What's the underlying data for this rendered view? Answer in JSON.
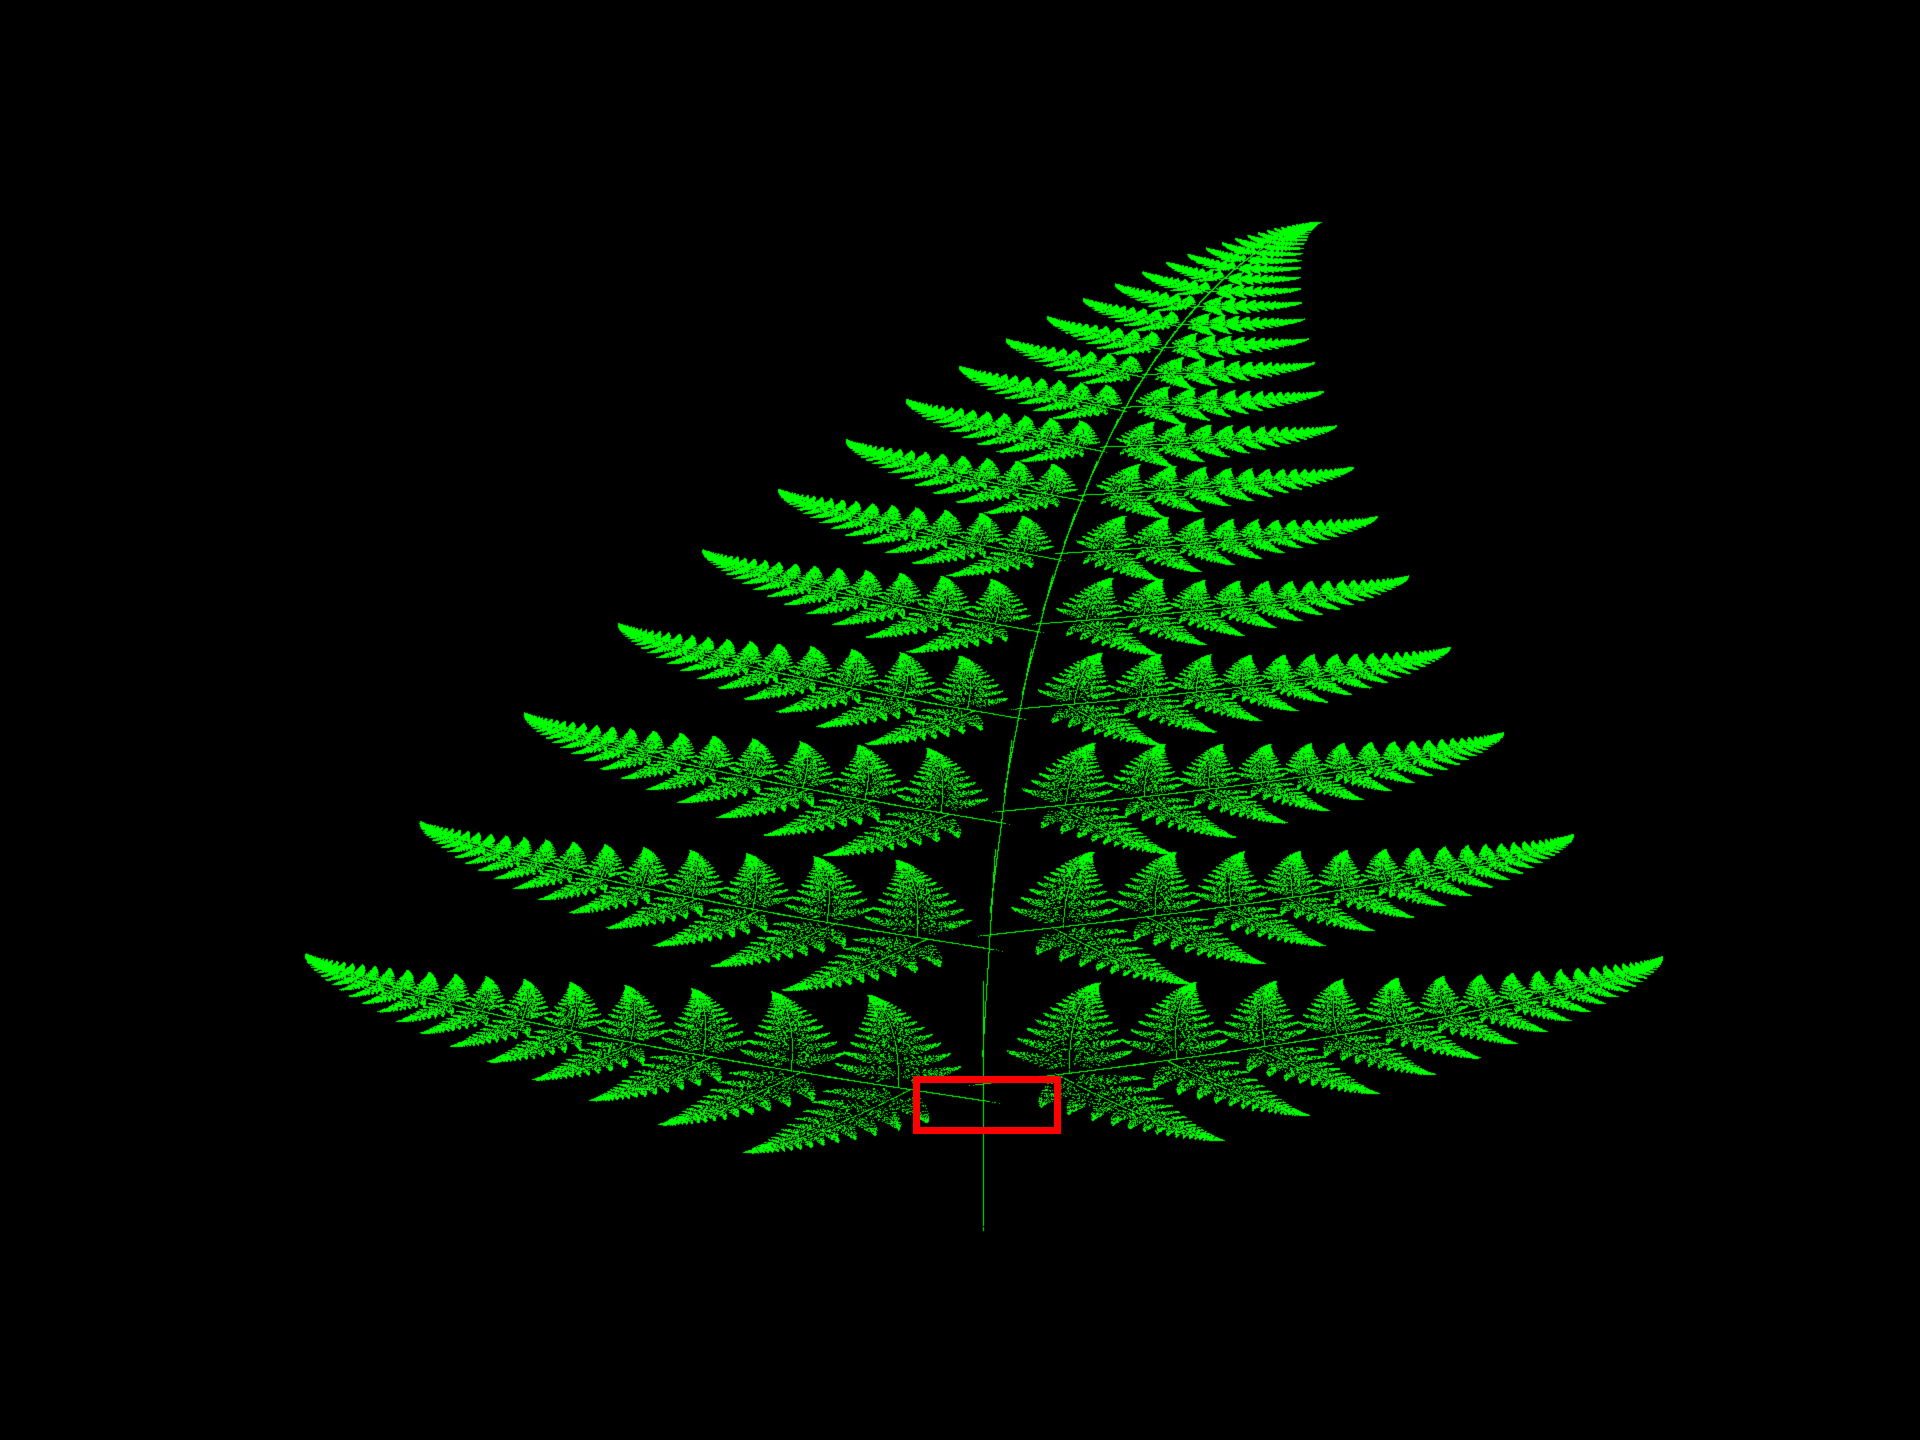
{
  "scene": {
    "subject": "barnsley-fern-fractal",
    "background_color": "#000000",
    "fern_color": "#00ff00",
    "selection_color": "#ff0000"
  }
}
